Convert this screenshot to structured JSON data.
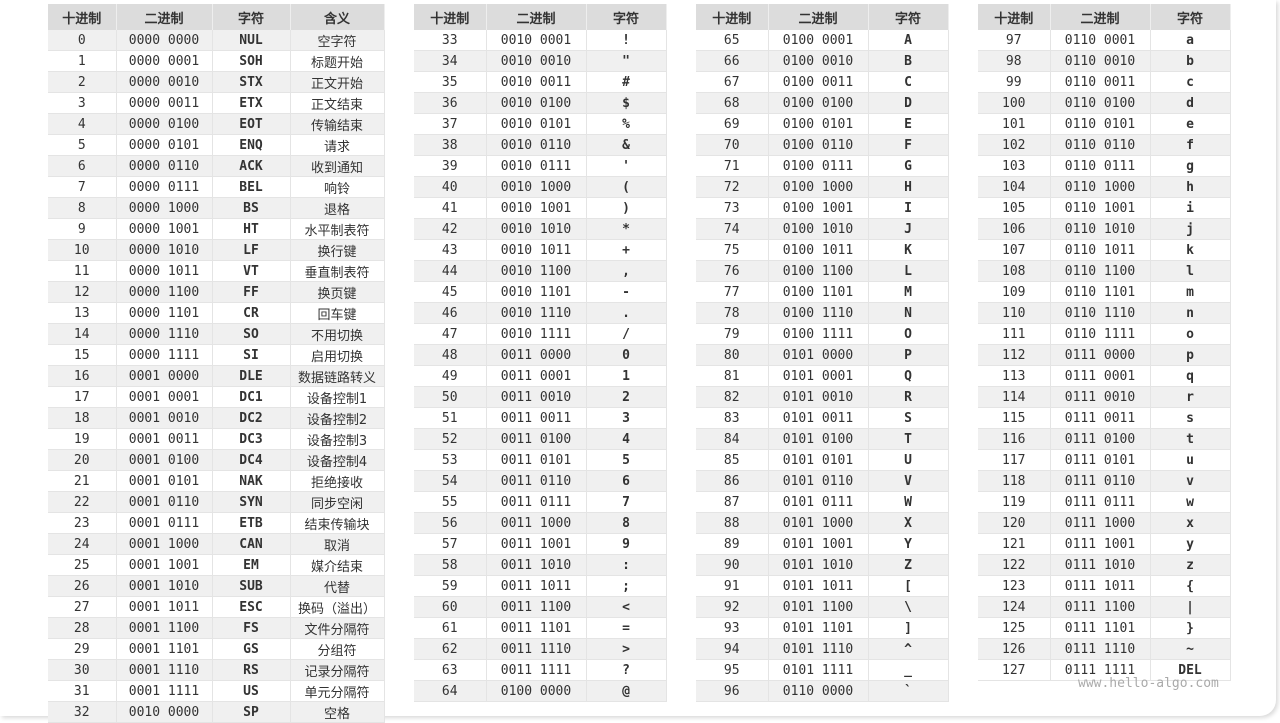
{
  "headers": {
    "dec": "十进制",
    "bin": "二进制",
    "char": "字符",
    "meaning": "含义"
  },
  "watermark": "www.hello-algo.com",
  "colors": {
    "header_bg": "#dcdcdc",
    "stripe_bg": "#f0f0f0",
    "text": "#333333"
  },
  "tables": [
    {
      "rows": [
        [
          "0",
          "0000 0000",
          "NUL",
          "空字符"
        ],
        [
          "1",
          "0000 0001",
          "SOH",
          "标题开始"
        ],
        [
          "2",
          "0000 0010",
          "STX",
          "正文开始"
        ],
        [
          "3",
          "0000 0011",
          "ETX",
          "正文结束"
        ],
        [
          "4",
          "0000 0100",
          "EOT",
          "传输结束"
        ],
        [
          "5",
          "0000 0101",
          "ENQ",
          "请求"
        ],
        [
          "6",
          "0000 0110",
          "ACK",
          "收到通知"
        ],
        [
          "7",
          "0000 0111",
          "BEL",
          "响铃"
        ],
        [
          "8",
          "0000 1000",
          "BS",
          "退格"
        ],
        [
          "9",
          "0000 1001",
          "HT",
          "水平制表符"
        ],
        [
          "10",
          "0000 1010",
          "LF",
          "换行键"
        ],
        [
          "11",
          "0000 1011",
          "VT",
          "垂直制表符"
        ],
        [
          "12",
          "0000 1100",
          "FF",
          "换页键"
        ],
        [
          "13",
          "0000 1101",
          "CR",
          "回车键"
        ],
        [
          "14",
          "0000 1110",
          "SO",
          "不用切换"
        ],
        [
          "15",
          "0000 1111",
          "SI",
          "启用切换"
        ],
        [
          "16",
          "0001 0000",
          "DLE",
          "数据链路转义"
        ],
        [
          "17",
          "0001 0001",
          "DC1",
          "设备控制1"
        ],
        [
          "18",
          "0001 0010",
          "DC2",
          "设备控制2"
        ],
        [
          "19",
          "0001 0011",
          "DC3",
          "设备控制3"
        ],
        [
          "20",
          "0001 0100",
          "DC4",
          "设备控制4"
        ],
        [
          "21",
          "0001 0101",
          "NAK",
          "拒绝接收"
        ],
        [
          "22",
          "0001 0110",
          "SYN",
          "同步空闲"
        ],
        [
          "23",
          "0001 0111",
          "ETB",
          "结束传输块"
        ],
        [
          "24",
          "0001 1000",
          "CAN",
          "取消"
        ],
        [
          "25",
          "0001 1001",
          "EM",
          "媒介结束"
        ],
        [
          "26",
          "0001 1010",
          "SUB",
          "代替"
        ],
        [
          "27",
          "0001 1011",
          "ESC",
          "换码（溢出）"
        ],
        [
          "28",
          "0001 1100",
          "FS",
          "文件分隔符"
        ],
        [
          "29",
          "0001 1101",
          "GS",
          "分组符"
        ],
        [
          "30",
          "0001 1110",
          "RS",
          "记录分隔符"
        ],
        [
          "31",
          "0001 1111",
          "US",
          "单元分隔符"
        ],
        [
          "32",
          "0010 0000",
          "SP",
          "空格"
        ]
      ]
    },
    {
      "rows": [
        [
          "33",
          "0010 0001",
          "!"
        ],
        [
          "34",
          "0010 0010",
          "\""
        ],
        [
          "35",
          "0010 0011",
          "#"
        ],
        [
          "36",
          "0010 0100",
          "$"
        ],
        [
          "37",
          "0010 0101",
          "%"
        ],
        [
          "38",
          "0010 0110",
          "&"
        ],
        [
          "39",
          "0010 0111",
          "'"
        ],
        [
          "40",
          "0010 1000",
          "("
        ],
        [
          "41",
          "0010 1001",
          ")"
        ],
        [
          "42",
          "0010 1010",
          "*"
        ],
        [
          "43",
          "0010 1011",
          "+"
        ],
        [
          "44",
          "0010 1100",
          ","
        ],
        [
          "45",
          "0010 1101",
          "-"
        ],
        [
          "46",
          "0010 1110",
          "."
        ],
        [
          "47",
          "0010 1111",
          "/"
        ],
        [
          "48",
          "0011 0000",
          "0"
        ],
        [
          "49",
          "0011 0001",
          "1"
        ],
        [
          "50",
          "0011 0010",
          "2"
        ],
        [
          "51",
          "0011 0011",
          "3"
        ],
        [
          "52",
          "0011 0100",
          "4"
        ],
        [
          "53",
          "0011 0101",
          "5"
        ],
        [
          "54",
          "0011 0110",
          "6"
        ],
        [
          "55",
          "0011 0111",
          "7"
        ],
        [
          "56",
          "0011 1000",
          "8"
        ],
        [
          "57",
          "0011 1001",
          "9"
        ],
        [
          "58",
          "0011 1010",
          ":"
        ],
        [
          "59",
          "0011 1011",
          ";"
        ],
        [
          "60",
          "0011 1100",
          "<"
        ],
        [
          "61",
          "0011 1101",
          "="
        ],
        [
          "62",
          "0011 1110",
          ">"
        ],
        [
          "63",
          "0011 1111",
          "?"
        ],
        [
          "64",
          "0100 0000",
          "@"
        ]
      ]
    },
    {
      "rows": [
        [
          "65",
          "0100 0001",
          "A"
        ],
        [
          "66",
          "0100 0010",
          "B"
        ],
        [
          "67",
          "0100 0011",
          "C"
        ],
        [
          "68",
          "0100 0100",
          "D"
        ],
        [
          "69",
          "0100 0101",
          "E"
        ],
        [
          "70",
          "0100 0110",
          "F"
        ],
        [
          "71",
          "0100 0111",
          "G"
        ],
        [
          "72",
          "0100 1000",
          "H"
        ],
        [
          "73",
          "0100 1001",
          "I"
        ],
        [
          "74",
          "0100 1010",
          "J"
        ],
        [
          "75",
          "0100 1011",
          "K"
        ],
        [
          "76",
          "0100 1100",
          "L"
        ],
        [
          "77",
          "0100 1101",
          "M"
        ],
        [
          "78",
          "0100 1110",
          "N"
        ],
        [
          "79",
          "0100 1111",
          "O"
        ],
        [
          "80",
          "0101 0000",
          "P"
        ],
        [
          "81",
          "0101 0001",
          "Q"
        ],
        [
          "82",
          "0101 0010",
          "R"
        ],
        [
          "83",
          "0101 0011",
          "S"
        ],
        [
          "84",
          "0101 0100",
          "T"
        ],
        [
          "85",
          "0101 0101",
          "U"
        ],
        [
          "86",
          "0101 0110",
          "V"
        ],
        [
          "87",
          "0101 0111",
          "W"
        ],
        [
          "88",
          "0101 1000",
          "X"
        ],
        [
          "89",
          "0101 1001",
          "Y"
        ],
        [
          "90",
          "0101 1010",
          "Z"
        ],
        [
          "91",
          "0101 1011",
          "["
        ],
        [
          "92",
          "0101 1100",
          "\\"
        ],
        [
          "93",
          "0101 1101",
          "]"
        ],
        [
          "94",
          "0101 1110",
          "^"
        ],
        [
          "95",
          "0101 1111",
          "_"
        ],
        [
          "96",
          "0110 0000",
          "`"
        ]
      ]
    },
    {
      "rows": [
        [
          "97",
          "0110 0001",
          "a"
        ],
        [
          "98",
          "0110 0010",
          "b"
        ],
        [
          "99",
          "0110 0011",
          "c"
        ],
        [
          "100",
          "0110 0100",
          "d"
        ],
        [
          "101",
          "0110 0101",
          "e"
        ],
        [
          "102",
          "0110 0110",
          "f"
        ],
        [
          "103",
          "0110 0111",
          "g"
        ],
        [
          "104",
          "0110 1000",
          "h"
        ],
        [
          "105",
          "0110 1001",
          "i"
        ],
        [
          "106",
          "0110 1010",
          "j"
        ],
        [
          "107",
          "0110 1011",
          "k"
        ],
        [
          "108",
          "0110 1100",
          "l"
        ],
        [
          "109",
          "0110 1101",
          "m"
        ],
        [
          "110",
          "0110 1110",
          "n"
        ],
        [
          "111",
          "0110 1111",
          "o"
        ],
        [
          "112",
          "0111 0000",
          "p"
        ],
        [
          "113",
          "0111 0001",
          "q"
        ],
        [
          "114",
          "0111 0010",
          "r"
        ],
        [
          "115",
          "0111 0011",
          "s"
        ],
        [
          "116",
          "0111 0100",
          "t"
        ],
        [
          "117",
          "0111 0101",
          "u"
        ],
        [
          "118",
          "0111 0110",
          "v"
        ],
        [
          "119",
          "0111 0111",
          "w"
        ],
        [
          "120",
          "0111 1000",
          "x"
        ],
        [
          "121",
          "0111 1001",
          "y"
        ],
        [
          "122",
          "0111 1010",
          "z"
        ],
        [
          "123",
          "0111 1011",
          "{"
        ],
        [
          "124",
          "0111 1100",
          "|"
        ],
        [
          "125",
          "0111 1101",
          "}"
        ],
        [
          "126",
          "0111 1110",
          "~"
        ],
        [
          "127",
          "0111 1111",
          "DEL"
        ]
      ]
    }
  ]
}
